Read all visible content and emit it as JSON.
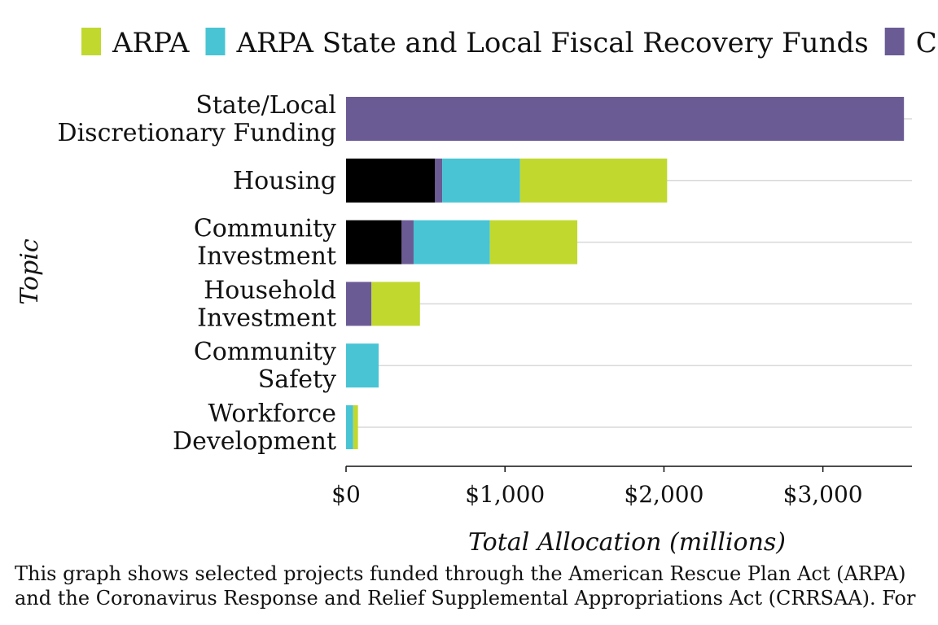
{
  "chart_data": {
    "type": "bar",
    "orientation": "horizontal",
    "stacked": true,
    "xlabel": "Total Allocation (millions)",
    "ylabel": "Topic",
    "xlim": [
      0,
      3550
    ],
    "xticks": [
      0,
      1000,
      2000,
      3000
    ],
    "xtick_labels": [
      "$0",
      "$1,000",
      "$2,000",
      "$3,000"
    ],
    "grid": "horizontal lines at category positions",
    "legend_position": "top",
    "categories": [
      [
        "State/Local",
        "Discretionary Funding"
      ],
      [
        "Housing"
      ],
      [
        "Community",
        "Investment"
      ],
      [
        "Household",
        "Investment"
      ],
      [
        "Community",
        "Safety"
      ],
      [
        "Workforce",
        "Development"
      ]
    ],
    "series": [
      {
        "color": "#000000",
        "values": [
          0,
          560,
          350,
          0,
          0,
          0
        ]
      },
      {
        "color": "#6b5b95",
        "values": [
          3510,
          45,
          75,
          160,
          0,
          0
        ]
      },
      {
        "name": "ARPA State and Local Fiscal Recovery Funds",
        "color": "#48c4d4",
        "values": [
          0,
          490,
          480,
          0,
          205,
          45
        ]
      },
      {
        "name": "ARPA",
        "color": "#c1d82f",
        "values": [
          0,
          925,
          550,
          305,
          0,
          30
        ]
      }
    ],
    "legend": [
      {
        "label": "ARPA",
        "color": "#c1d82f"
      },
      {
        "label": "ARPA State and Local Fiscal Recovery Funds",
        "color": "#48c4d4"
      },
      {
        "label": "C",
        "color": "#6b5b95"
      }
    ]
  },
  "caption": {
    "line1": "This graph shows selected projects funded through the American Rescue Plan Act (ARPA)",
    "line2": "and the Coronavirus Response and Relief Supplemental Appropriations Act (CRRSAA). For"
  }
}
